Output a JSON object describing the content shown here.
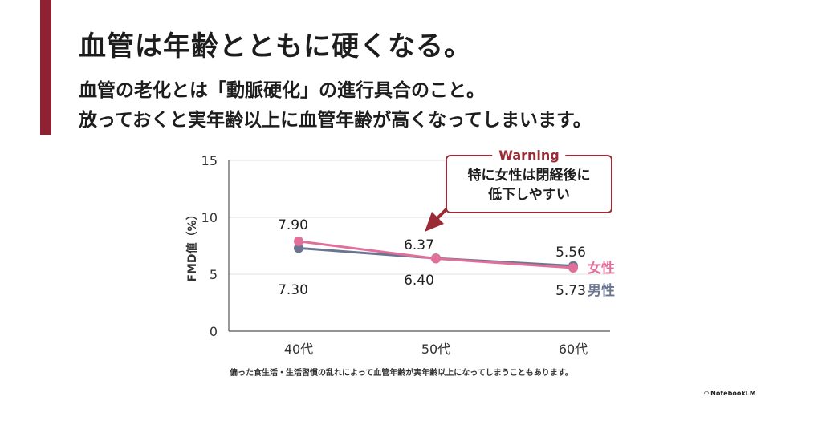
{
  "header": {
    "title": "血管は年齢とともに硬くなる。",
    "subtitle_line1": "血管の老化とは「動脈硬化」の進行具合のこと。",
    "subtitle_line2": "放っておくと実年齢以上に血管年齢が高くなってしまいます。"
  },
  "colors": {
    "accent": "#8f2232",
    "female": "#e0709a",
    "male": "#6b7592",
    "warning": "#9b2c35"
  },
  "chart_data": {
    "type": "line",
    "categories": [
      "40代",
      "50代",
      "60代"
    ],
    "ylabel": "FMD値（%）",
    "ylim": [
      0,
      15
    ],
    "yticks": [
      0,
      5,
      10,
      15
    ],
    "grid": true,
    "series": [
      {
        "name": "女性",
        "values": [
          7.9,
          6.37,
          5.56
        ],
        "labels": [
          "7.90",
          "6.37",
          "5.56"
        ],
        "color": "#e0709a"
      },
      {
        "name": "男性",
        "values": [
          7.3,
          6.4,
          5.73
        ],
        "labels": [
          "7.30",
          "6.40",
          "5.73"
        ],
        "color": "#6b7592"
      }
    ]
  },
  "warning": {
    "title": "Warning",
    "line1": "特に女性は閉経後に",
    "line2": "低下しやすい"
  },
  "footnote": "偏った食生活・生活習慣の乱れによって血管年齢が実年齢以上になってしまうこともあります。",
  "watermark": "NotebookLM"
}
